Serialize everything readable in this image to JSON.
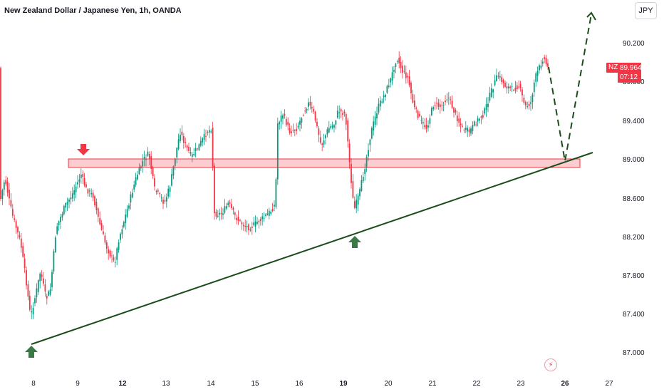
{
  "header": {
    "title": "New Zealand Dollar / Japanese Yen, 1h, OANDA",
    "currency_button": "JPY"
  },
  "price_axis": {
    "labels": [
      "90.200",
      "89.800",
      "89.400",
      "89.000",
      "88.600",
      "88.200",
      "87.800",
      "87.400",
      "87.000"
    ]
  },
  "time_axis": {
    "labels": [
      {
        "text": "8",
        "bold": false
      },
      {
        "text": "9",
        "bold": false
      },
      {
        "text": "12",
        "bold": true
      },
      {
        "text": "13",
        "bold": false
      },
      {
        "text": "14",
        "bold": false
      },
      {
        "text": "15",
        "bold": false
      },
      {
        "text": "16",
        "bold": false
      },
      {
        "text": "19",
        "bold": true
      },
      {
        "text": "20",
        "bold": false
      },
      {
        "text": "21",
        "bold": false
      },
      {
        "text": "22",
        "bold": false
      },
      {
        "text": "23",
        "bold": false
      },
      {
        "text": "26",
        "bold": true
      },
      {
        "text": "27",
        "bold": false
      }
    ]
  },
  "current_price": {
    "symbol": "NZDJPY",
    "price": "89.964",
    "countdown": "07:12",
    "color": "#f23645"
  },
  "drawings": {
    "support_zone_color": "#f23645",
    "trendline_color": "#1b4d1b",
    "up_arrow_color": "#3b7a47",
    "down_arrow_color": "#f23645"
  },
  "colors": {
    "bull": "#089981",
    "bear": "#f23645"
  },
  "icons": {
    "lightning": "lightning-icon"
  }
}
